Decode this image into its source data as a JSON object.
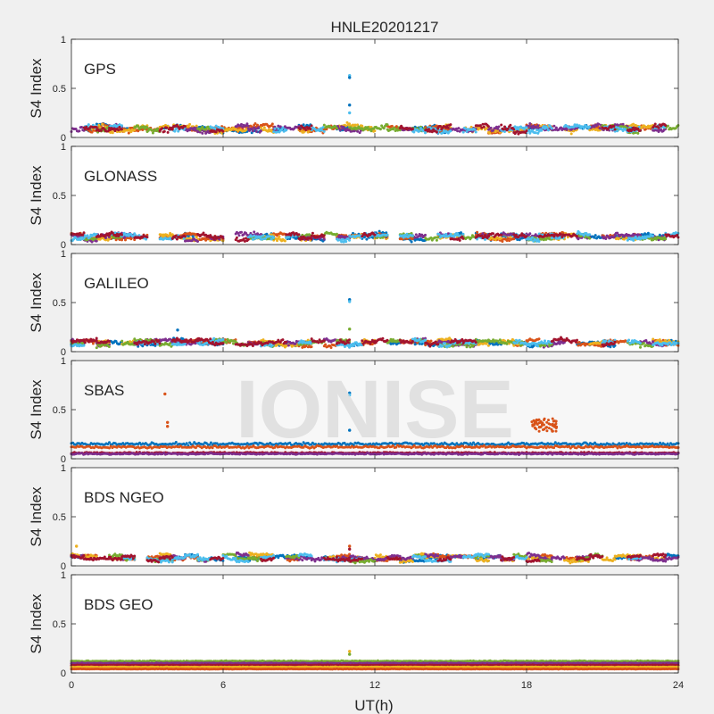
{
  "figure": {
    "title": "HNLE20201217",
    "xlabel": "UT(h)",
    "ylabel": "S4 Index",
    "watermark": "IONISE"
  },
  "colors": [
    "#0072bd",
    "#d95319",
    "#edb120",
    "#7e2f8e",
    "#77ac30",
    "#4dbeee",
    "#a2142f"
  ],
  "chart_data": [
    {
      "type": "scatter",
      "panel_label": "GPS",
      "xlim": [
        0,
        24
      ],
      "ylim": [
        0,
        1
      ],
      "xticks": [
        0,
        6,
        12,
        18,
        24
      ],
      "yticks": [
        0,
        0.5,
        1
      ],
      "ytick_labels": [
        "0",
        "0.5",
        "1"
      ],
      "baseline_s4": 0.09,
      "noise_s4": 0.035,
      "outliers": [
        {
          "x": 11.0,
          "y": 0.63,
          "color": "#4dbeee"
        },
        {
          "x": 11.0,
          "y": 0.61,
          "color": "#0072bd"
        },
        {
          "x": 11.0,
          "y": 0.33,
          "color": "#0072bd"
        },
        {
          "x": 11.0,
          "y": 0.25,
          "color": "#4dbeee"
        }
      ],
      "clusters": []
    },
    {
      "type": "scatter",
      "panel_label": "GLONASS",
      "xlim": [
        0,
        24
      ],
      "ylim": [
        0,
        1
      ],
      "xticks": [
        0,
        6,
        12,
        18,
        24
      ],
      "yticks": [
        0,
        0.5,
        1
      ],
      "ytick_labels": [
        "0",
        "0.5",
        "1"
      ],
      "baseline_s4": 0.08,
      "noise_s4": 0.03,
      "outliers": [],
      "clusters": []
    },
    {
      "type": "scatter",
      "panel_label": "GALILEO",
      "xlim": [
        0,
        24
      ],
      "ylim": [
        0,
        1
      ],
      "xticks": [
        0,
        6,
        12,
        18,
        24
      ],
      "yticks": [
        0,
        0.5,
        1
      ],
      "ytick_labels": [
        "0",
        "0.5",
        "1"
      ],
      "baseline_s4": 0.09,
      "noise_s4": 0.03,
      "outliers": [
        {
          "x": 11.0,
          "y": 0.53,
          "color": "#0072bd"
        },
        {
          "x": 11.0,
          "y": 0.51,
          "color": "#4dbeee"
        },
        {
          "x": 11.0,
          "y": 0.23,
          "color": "#77ac30"
        },
        {
          "x": 4.2,
          "y": 0.22,
          "color": "#0072bd"
        }
      ],
      "clusters": []
    },
    {
      "type": "scatter",
      "panel_label": "SBAS",
      "xlim": [
        0,
        24
      ],
      "ylim": [
        0,
        1
      ],
      "xticks": [
        0,
        6,
        12,
        18,
        24
      ],
      "yticks": [
        0,
        0.5,
        1
      ],
      "ytick_labels": [
        "0",
        "0.5",
        "1"
      ],
      "baseline_s4": 0.1,
      "noise_s4": 0.02,
      "outliers": [
        {
          "x": 3.7,
          "y": 0.66,
          "color": "#d95319"
        },
        {
          "x": 3.8,
          "y": 0.37,
          "color": "#d95319"
        },
        {
          "x": 3.8,
          "y": 0.33,
          "color": "#d95319"
        },
        {
          "x": 11.0,
          "y": 0.67,
          "color": "#0072bd"
        },
        {
          "x": 11.0,
          "y": 0.65,
          "color": "#4dbeee"
        },
        {
          "x": 11.0,
          "y": 0.29,
          "color": "#0072bd"
        }
      ],
      "clusters": [
        {
          "x_start": 18.2,
          "x_end": 19.2,
          "y_low": 0.28,
          "y_high": 0.41,
          "color": "#d95319"
        }
      ],
      "bands": [
        {
          "s4": 0.15,
          "noise": 0.02,
          "color": "#0072bd"
        },
        {
          "s4": 0.12,
          "noise": 0.018,
          "color": "#d95319"
        },
        {
          "s4": 0.06,
          "noise": 0.01,
          "color": "#a2142f"
        },
        {
          "s4": 0.05,
          "noise": 0.01,
          "color": "#7e2f8e"
        }
      ]
    },
    {
      "type": "scatter",
      "panel_label": "BDS NGEO",
      "xlim": [
        0,
        24
      ],
      "ylim": [
        0,
        1
      ],
      "xticks": [
        0,
        6,
        12,
        18,
        24
      ],
      "yticks": [
        0,
        0.5,
        1
      ],
      "ytick_labels": [
        "0",
        "0.5",
        "1"
      ],
      "baseline_s4": 0.08,
      "noise_s4": 0.025,
      "outliers": [
        {
          "x": 11.0,
          "y": 0.2,
          "color": "#d95319"
        },
        {
          "x": 11.0,
          "y": 0.17,
          "color": "#a2142f"
        },
        {
          "x": 0.2,
          "y": 0.2,
          "color": "#edb120"
        }
      ],
      "clusters": []
    },
    {
      "type": "scatter",
      "panel_label": "BDS GEO",
      "xlim": [
        0,
        24
      ],
      "ylim": [
        0,
        1
      ],
      "xticks": [
        0,
        6,
        12,
        18,
        24
      ],
      "xtick_labels": [
        "0",
        "6",
        "12",
        "18",
        "24"
      ],
      "yticks": [
        0,
        0.5,
        1
      ],
      "ytick_labels": [
        "0",
        "0.5",
        "1"
      ],
      "baseline_s4": 0.08,
      "noise_s4": 0.005,
      "outliers": [
        {
          "x": 11.0,
          "y": 0.22,
          "color": "#edb120"
        },
        {
          "x": 11.0,
          "y": 0.19,
          "color": "#77ac30"
        }
      ],
      "clusters": [],
      "bands": [
        {
          "s4": 0.12,
          "noise": 0.006,
          "color": "#77ac30"
        },
        {
          "s4": 0.1,
          "noise": 0.005,
          "color": "#7e2f8e"
        },
        {
          "s4": 0.08,
          "noise": 0.004,
          "color": "#a2142f"
        },
        {
          "s4": 0.06,
          "noise": 0.004,
          "color": "#edb120"
        },
        {
          "s4": 0.04,
          "noise": 0.003,
          "color": "#d95319"
        }
      ]
    }
  ]
}
